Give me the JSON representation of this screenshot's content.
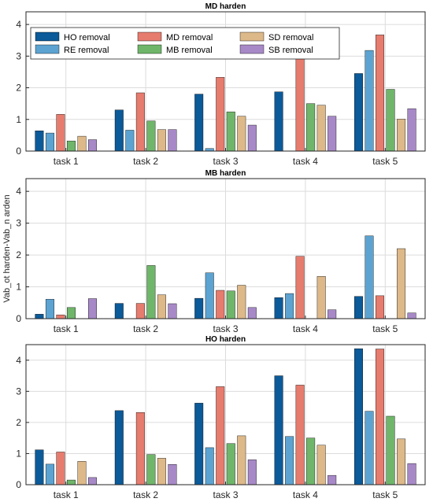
{
  "chart_data": [
    {
      "type": "bar",
      "title": "MD harden",
      "ylabel": "",
      "ylim": [
        0,
        4.4
      ],
      "yticks": [
        0,
        1,
        2,
        3,
        4
      ],
      "grid": true,
      "legend_position": "top-left",
      "categories": [
        "task 1",
        "task 2",
        "task 3",
        "task 4",
        "task 5"
      ],
      "series": [
        {
          "name": "HO removal",
          "color": "#0b5a99",
          "values": [
            0.64,
            1.3,
            1.8,
            1.87,
            2.45
          ]
        },
        {
          "name": "RE removal",
          "color": "#5ca3d1",
          "values": [
            0.57,
            0.66,
            0.08,
            0,
            3.18
          ]
        },
        {
          "name": "MD removal",
          "color": "#e67c6e",
          "values": [
            1.16,
            1.84,
            2.33,
            2.95,
            3.67
          ]
        },
        {
          "name": "MB removal",
          "color": "#6fb66a",
          "values": [
            0.32,
            0.95,
            1.24,
            1.5,
            1.95
          ]
        },
        {
          "name": "SD removal",
          "color": "#ddb889",
          "values": [
            0.47,
            0.68,
            1.1,
            1.45,
            1.01
          ]
        },
        {
          "name": "SB removal",
          "color": "#a889c7",
          "values": [
            0.36,
            0.68,
            0.82,
            1.1,
            1.34
          ]
        }
      ]
    },
    {
      "type": "bar",
      "title": "MB harden",
      "ylabel": "Vab_ot harden-Vab_n arden",
      "ylim": [
        0,
        4.4
      ],
      "yticks": [
        0,
        1,
        2,
        3,
        4
      ],
      "grid": true,
      "categories": [
        "task 1",
        "task 2",
        "task 3",
        "task 4",
        "task 5"
      ],
      "series": [
        {
          "color": "#0b5a99",
          "values": [
            0.14,
            0.48,
            0.64,
            0.66,
            0.7
          ]
        },
        {
          "color": "#5ca3d1",
          "values": [
            0.61,
            0,
            1.44,
            0.79,
            2.6
          ]
        },
        {
          "color": "#e67c6e",
          "values": [
            0.12,
            0.48,
            0.89,
            1.96,
            0.72
          ]
        },
        {
          "color": "#6fb66a",
          "values": [
            0.35,
            1.67,
            0.87,
            0,
            0
          ]
        },
        {
          "color": "#ddb889",
          "values": [
            0,
            0.75,
            1.05,
            1.33,
            2.2
          ]
        },
        {
          "color": "#a889c7",
          "values": [
            0.63,
            0.47,
            0.35,
            0.28,
            0.18
          ]
        }
      ]
    },
    {
      "type": "bar",
      "title": "HO harden",
      "ylabel": "",
      "ylim": [
        0,
        4.5
      ],
      "yticks": [
        0,
        1,
        2,
        3,
        4
      ],
      "grid": true,
      "categories": [
        "task 1",
        "task 2",
        "task 3",
        "task 4",
        "task 5"
      ],
      "series": [
        {
          "color": "#0b5a99",
          "values": [
            1.12,
            2.38,
            2.62,
            3.5,
            4.37
          ]
        },
        {
          "color": "#5ca3d1",
          "values": [
            0.66,
            0,
            1.19,
            1.55,
            2.36
          ]
        },
        {
          "color": "#e67c6e",
          "values": [
            1.05,
            2.32,
            3.15,
            3.2,
            4.36
          ]
        },
        {
          "color": "#6fb66a",
          "values": [
            0.15,
            0.97,
            1.32,
            1.5,
            2.2
          ]
        },
        {
          "color": "#ddb889",
          "values": [
            0.75,
            0.85,
            1.57,
            1.27,
            1.47
          ]
        },
        {
          "color": "#a889c7",
          "values": [
            0.23,
            0.65,
            0.8,
            0.3,
            0.68
          ]
        }
      ]
    }
  ]
}
